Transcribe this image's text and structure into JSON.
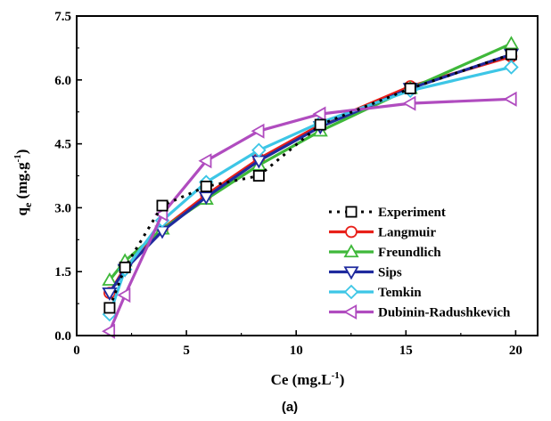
{
  "chart_data": {
    "type": "line",
    "title": "",
    "panel_label": "(a)",
    "xlabel": {
      "base": "Ce (mg.L",
      "sup": "-1",
      "close": ")"
    },
    "ylabel": {
      "base": "q",
      "sub": "e",
      "mid": " (mg.g",
      "sup": "-1",
      "close": ")"
    },
    "xlim": [
      0,
      21
    ],
    "ylim": [
      0,
      7.5
    ],
    "xticks": [
      "0",
      "5",
      "10",
      "15",
      "20"
    ],
    "xtick_values": [
      0,
      5,
      10,
      15,
      20
    ],
    "yticks": [
      "0.0",
      "1.5",
      "3.0",
      "4.5",
      "6.0",
      "7.5"
    ],
    "ytick_values": [
      0,
      1.5,
      3.0,
      4.5,
      6.0,
      7.5
    ],
    "grid": false,
    "legend_position": "bottom-right",
    "series": [
      {
        "name": "Experiment",
        "color": "#000000",
        "marker": "square",
        "line": "dash",
        "x": [
          1.5,
          2.2,
          3.9,
          5.9,
          8.3,
          11.1,
          15.2,
          19.8
        ],
        "y": [
          0.65,
          1.6,
          3.05,
          3.5,
          3.75,
          4.95,
          5.8,
          6.6
        ]
      },
      {
        "name": "Langmuir",
        "color": "#e8201a",
        "marker": "circle",
        "line": "solid",
        "x": [
          1.5,
          2.2,
          3.9,
          5.9,
          8.3,
          11.1,
          15.2,
          19.8
        ],
        "y": [
          1.0,
          1.6,
          2.5,
          3.3,
          4.15,
          4.95,
          5.85,
          6.55
        ]
      },
      {
        "name": "Freundlich",
        "color": "#3fb83a",
        "marker": "triangle-up",
        "line": "solid",
        "x": [
          1.5,
          2.2,
          3.9,
          5.9,
          8.3,
          11.1,
          15.2,
          19.8
        ],
        "y": [
          1.3,
          1.75,
          2.5,
          3.2,
          4.0,
          4.8,
          5.8,
          6.85
        ]
      },
      {
        "name": "Sips",
        "color": "#1f2a9e",
        "marker": "triangle-down",
        "line": "solid",
        "x": [
          1.5,
          2.2,
          3.9,
          5.9,
          8.3,
          11.1,
          15.2,
          19.8
        ],
        "y": [
          1.0,
          1.55,
          2.45,
          3.25,
          4.1,
          4.9,
          5.8,
          6.6
        ]
      },
      {
        "name": "Temkin",
        "color": "#3dc6e6",
        "marker": "diamond",
        "line": "solid",
        "x": [
          1.5,
          2.2,
          3.9,
          5.9,
          8.3,
          11.1,
          15.2,
          19.8
        ],
        "y": [
          0.5,
          1.55,
          2.7,
          3.6,
          4.35,
          5.0,
          5.75,
          6.3
        ]
      },
      {
        "name": "Dubinin-Radushkevich",
        "color": "#b04cbf",
        "marker": "triangle-left",
        "line": "solid",
        "x": [
          1.5,
          2.2,
          3.9,
          5.9,
          8.3,
          11.1,
          15.2,
          19.8
        ],
        "y": [
          0.1,
          0.95,
          2.85,
          4.1,
          4.8,
          5.2,
          5.45,
          5.55
        ]
      }
    ]
  }
}
